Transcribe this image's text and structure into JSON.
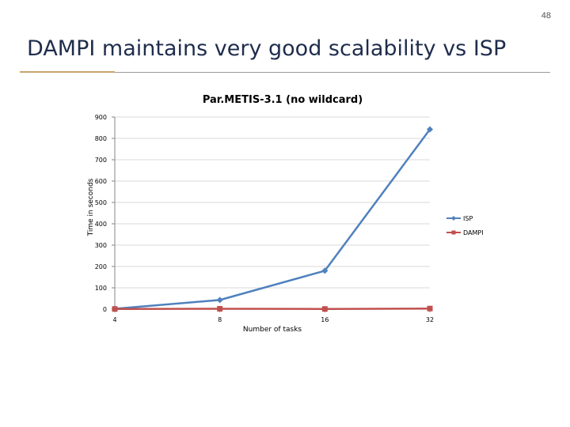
{
  "slide": {
    "page_number": "48",
    "title": "DAMPI maintains very good scalability vs ISP"
  },
  "colors": {
    "isp": "#4f81bd",
    "dampi": "#c0504d",
    "grid": "#d9d9d9",
    "axis": "#868686",
    "title_text": "#1f2d4d"
  },
  "chart_data": {
    "type": "line",
    "title": "Par.METIS-3.1 (no wildcard)",
    "xlabel": "Number of tasks",
    "ylabel": "Time in seconds",
    "categories": [
      "4",
      "8",
      "16",
      "32"
    ],
    "ylim": [
      0,
      900
    ],
    "yticks": [
      0,
      100,
      200,
      300,
      400,
      500,
      600,
      700,
      800,
      900
    ],
    "grid": true,
    "legend_position": "right",
    "series": [
      {
        "name": "ISP",
        "values": [
          2,
          43,
          180,
          842
        ],
        "color": "#4f81bd",
        "marker": "diamond"
      },
      {
        "name": "DAMPI",
        "values": [
          1,
          2,
          1,
          3
        ],
        "color": "#c0504d",
        "marker": "square"
      }
    ]
  }
}
